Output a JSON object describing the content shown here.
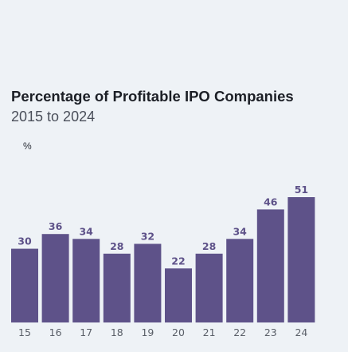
{
  "chart_data": {
    "type": "bar",
    "title": "Percentage of Profitable IPO Companies",
    "subtitle": "2015 to 2024",
    "ylabel": "%",
    "xlabel": "",
    "categories": [
      "15",
      "16",
      "17",
      "18",
      "19",
      "20",
      "21",
      "22",
      "23",
      "24"
    ],
    "values": [
      30,
      36,
      34,
      28,
      32,
      22,
      28,
      34,
      46,
      51
    ],
    "ylim": [
      0,
      51
    ],
    "grid": false,
    "legend": "none",
    "bar_color": "#5e5289"
  }
}
